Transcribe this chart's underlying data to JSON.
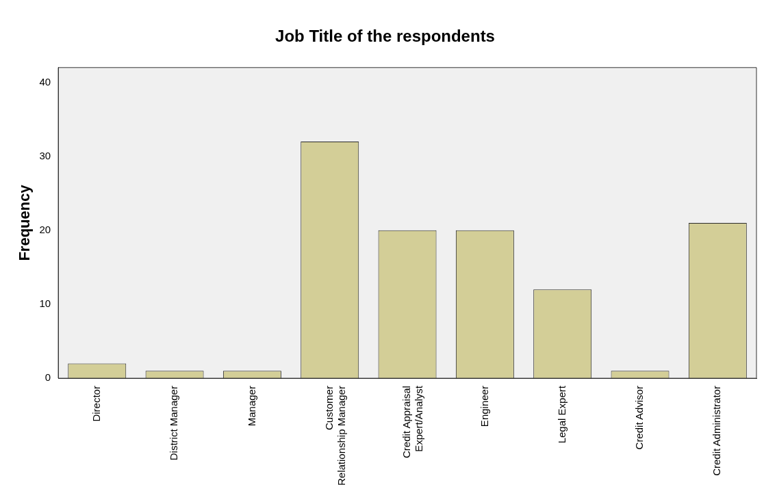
{
  "chart_data": {
    "type": "bar",
    "title": "Job Title of the respondents",
    "ylabel": "Frequency",
    "categories": [
      "Director",
      "District Manager",
      "Manager",
      "Customer Relationship Manager",
      "Credit Appraisal Expert/Analyst",
      "Engineer",
      "Legal Expert",
      "Credit Advisor",
      "Credit Administrator"
    ],
    "values": [
      2,
      1,
      1,
      32,
      20,
      20,
      12,
      1,
      21
    ],
    "color": "#d3ce97",
    "ylim": [
      0,
      42
    ],
    "yticks": [
      0,
      10,
      20,
      30,
      40
    ],
    "grid": false,
    "legend": false
  }
}
